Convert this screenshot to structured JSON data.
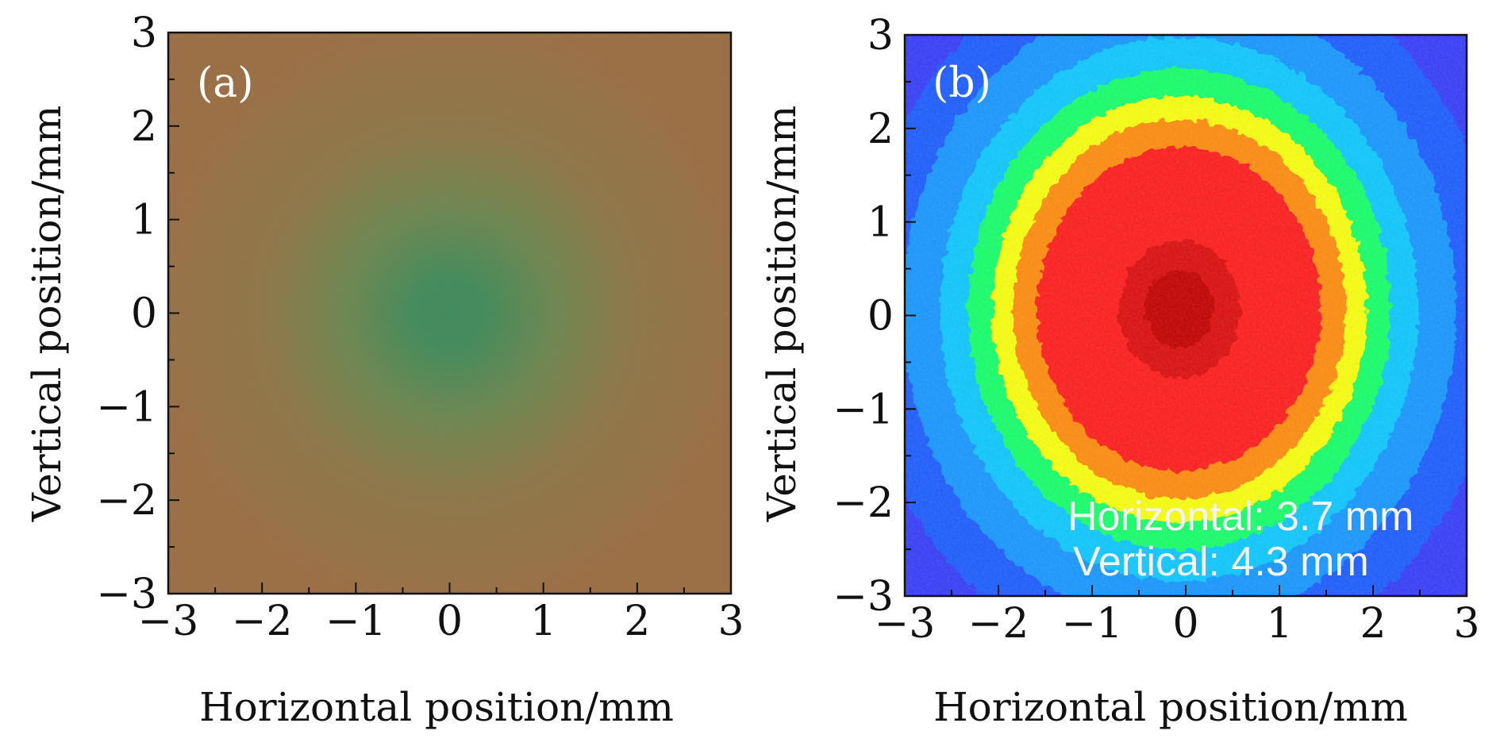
{
  "chart_data": [
    {
      "type": "heatmap",
      "panel_label": "(a)",
      "xlabel": "Horizontal position/mm",
      "ylabel": "Vertical position/mm",
      "xlim": [
        -3,
        3
      ],
      "ylim": [
        -3,
        3
      ],
      "xticks": [
        -3,
        -2,
        -1,
        0,
        1,
        2,
        3
      ],
      "yticks": [
        -3,
        -2,
        -1,
        0,
        1,
        2,
        3
      ],
      "xtick_labels": [
        "−3",
        "−2",
        "−1",
        "0",
        "1",
        "2",
        "3"
      ],
      "ytick_labels": [
        "−3",
        "−2",
        "−1",
        "0",
        "1",
        "2",
        "3"
      ],
      "colors": {
        "background": "#9a6e44",
        "center": "#3f8a5c"
      },
      "spot": {
        "cx": 0.0,
        "cy": 0.0
      }
    },
    {
      "type": "heatmap",
      "panel_label": "(b)",
      "xlabel": "Horizontal position/mm",
      "ylabel": "Vertical position/mm",
      "xlim": [
        -3,
        3
      ],
      "ylim": [
        -3,
        3
      ],
      "xticks": [
        -3,
        -2,
        -1,
        0,
        1,
        2,
        3
      ],
      "yticks": [
        -3,
        -2,
        -1,
        0,
        1,
        2,
        3
      ],
      "xtick_labels": [
        "−3",
        "−2",
        "−1",
        "0",
        "1",
        "2",
        "3"
      ],
      "ytick_labels": [
        "−3",
        "−2",
        "−1",
        "0",
        "1",
        "2",
        "3"
      ],
      "annotations": [
        "Horizontal: 3.7 mm",
        "Vertical: 4.3 mm"
      ],
      "spot": {
        "cx": 0.0,
        "cy": 0.0,
        "width_mm": 3.7,
        "height_mm": 4.3
      },
      "colormap": [
        "#5a10f0",
        "#1f5cff",
        "#10c8ff",
        "#17ff6a",
        "#f8ff10",
        "#ff8c10",
        "#ff1a1a",
        "#c00000"
      ]
    }
  ]
}
